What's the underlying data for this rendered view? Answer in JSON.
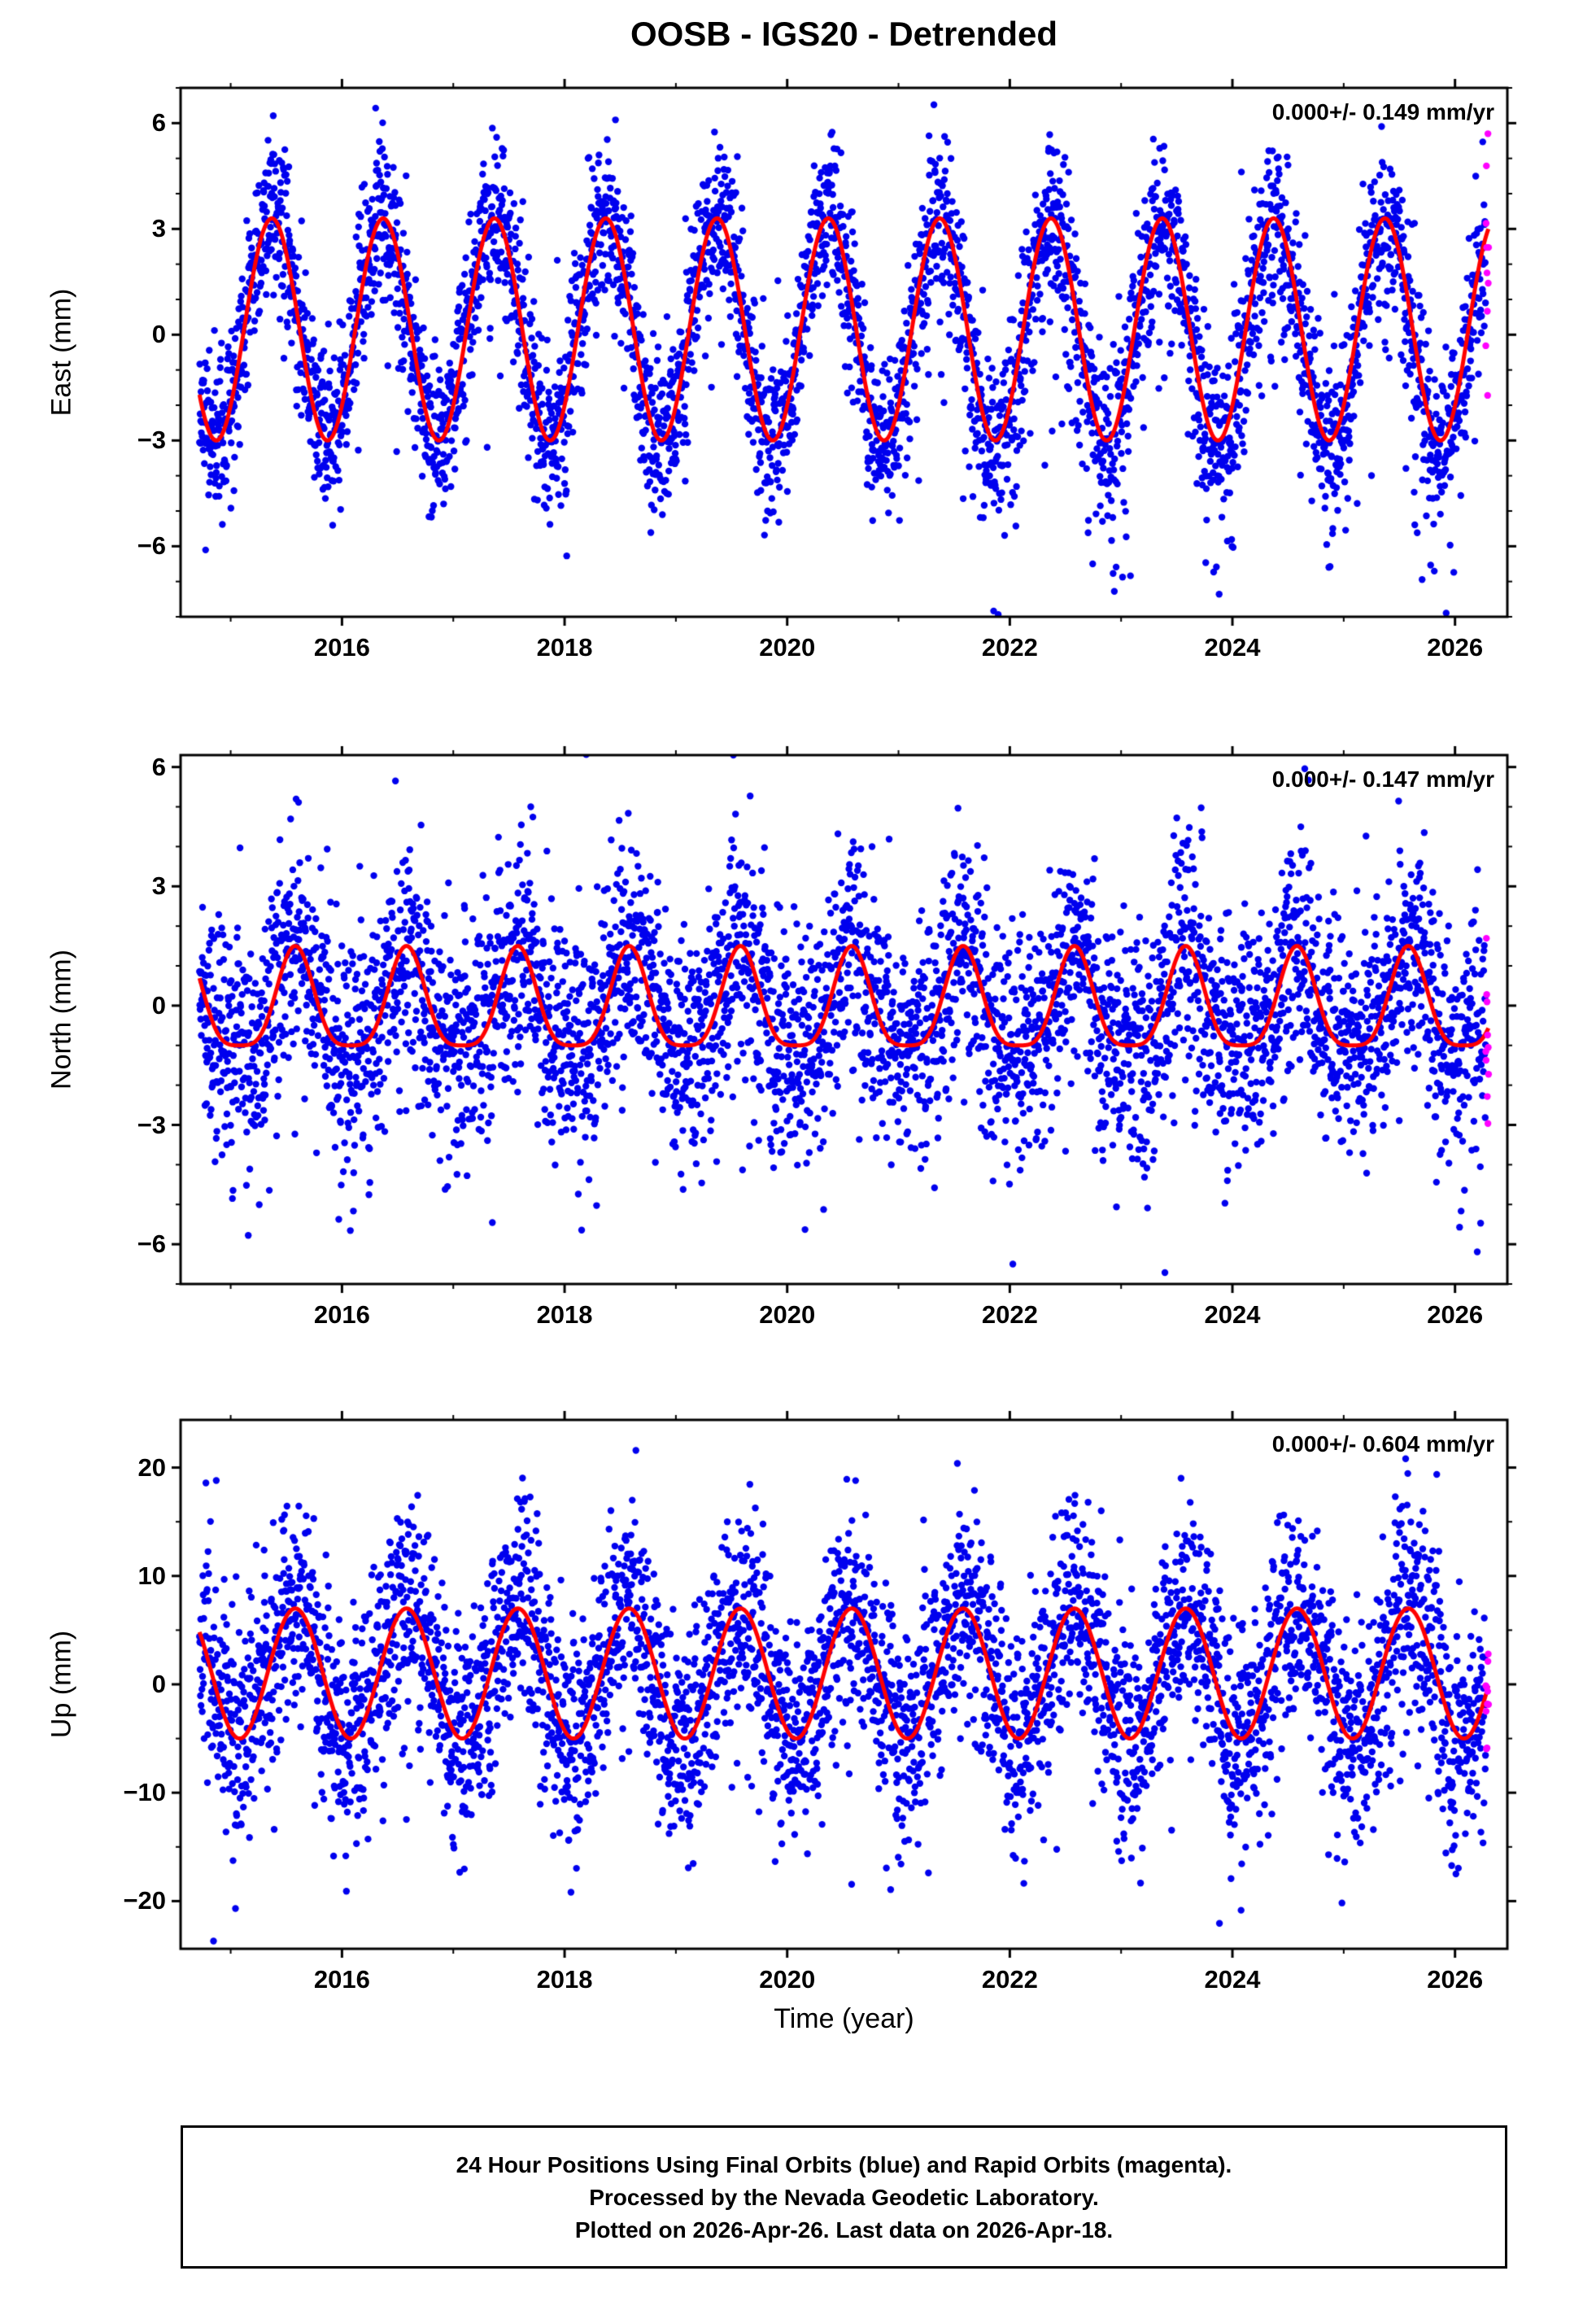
{
  "title": "OOSB - IGS20 - Detrended",
  "axes": {
    "x_label": "Time (year)"
  },
  "footer": {
    "line1": "24 Hour Positions Using Final Orbits (blue) and Rapid Orbits (magenta).",
    "line2": "Processed by the Nevada Geodetic Laboratory.",
    "line3": "Plotted on 2026-Apr-26. Last data on 2026-Apr-18."
  },
  "colors": {
    "final_points": "#0000ee",
    "rapid_points": "#ff00ff",
    "fit_line": "#ff0000",
    "frame": "#000000"
  },
  "chart_data": [
    {
      "type": "scatter",
      "name": "east",
      "ylabel": "East (mm)",
      "annotation": "0.000+/- 0.149 mm/yr",
      "xlim": [
        2014.55,
        2026.47
      ],
      "xticks": [
        2016,
        2018,
        2020,
        2022,
        2024,
        2026
      ],
      "x_minor_step": 1,
      "ylim": [
        -8.0,
        7.0
      ],
      "yticks": [
        -6,
        -3,
        0,
        3,
        6
      ],
      "y_minor_step": 1,
      "x_start": 2014.72,
      "x_end": 2026.3,
      "rapid_start": 2026.275,
      "points_per_year": 365.25,
      "fit": {
        "offset": 0.15,
        "terms": [
          {
            "period": 1,
            "amp": 3.15,
            "peak": 0.37
          }
        ]
      },
      "noise": {
        "sigma": 1.15,
        "out_frac": 0.05,
        "out_scale": 1.6,
        "out_bias": -0.6,
        "late_after": 2021.0,
        "late_frac": 0.1,
        "late_scale": 1.9
      },
      "seed": 11
    },
    {
      "type": "scatter",
      "name": "north",
      "ylabel": "North (mm)",
      "annotation": "0.000+/- 0.147 mm/yr",
      "xlim": [
        2014.55,
        2026.47
      ],
      "xticks": [
        2016,
        2018,
        2020,
        2022,
        2024,
        2026
      ],
      "x_minor_step": 1,
      "ylim": [
        -7.0,
        6.3
      ],
      "yticks": [
        -6,
        -3,
        0,
        3,
        6
      ],
      "y_minor_step": 1,
      "x_start": 2014.72,
      "x_end": 2026.3,
      "rapid_start": 2026.275,
      "points_per_year": 365.25,
      "fit": {
        "offset": -0.05,
        "terms": [
          {
            "period": 1,
            "amp": 1.25,
            "peak": 0.58
          },
          {
            "period": 0.5,
            "amp": 0.3,
            "peak": 0.08
          }
        ]
      },
      "noise": {
        "sigma": 1.45,
        "out_frac": 0.06,
        "out_scale": 1.8,
        "out_bias": -0.2,
        "late_after": 0,
        "late_frac": 0,
        "late_scale": 0
      },
      "seed": 22
    },
    {
      "type": "scatter",
      "name": "up",
      "ylabel": "Up (mm)",
      "annotation": "0.000+/- 0.604 mm/yr",
      "xlim": [
        2014.55,
        2026.47
      ],
      "xticks": [
        2016,
        2018,
        2020,
        2022,
        2024,
        2026
      ],
      "x_minor_step": 1,
      "ylim": [
        -24.4,
        24.4
      ],
      "yticks": [
        -20,
        -10,
        0,
        10,
        20
      ],
      "y_minor_step": 5,
      "x_start": 2014.72,
      "x_end": 2026.3,
      "rapid_start": 2026.275,
      "points_per_year": 365.25,
      "fit": {
        "offset": 1.0,
        "terms": [
          {
            "period": 1,
            "amp": 6.0,
            "peak": 0.58
          }
        ]
      },
      "noise": {
        "sigma": 5.0,
        "out_frac": 0.07,
        "out_scale": 5.5,
        "out_bias": -1.5,
        "late_after": 0,
        "late_frac": 0,
        "late_scale": 0
      },
      "seed": 33
    }
  ]
}
